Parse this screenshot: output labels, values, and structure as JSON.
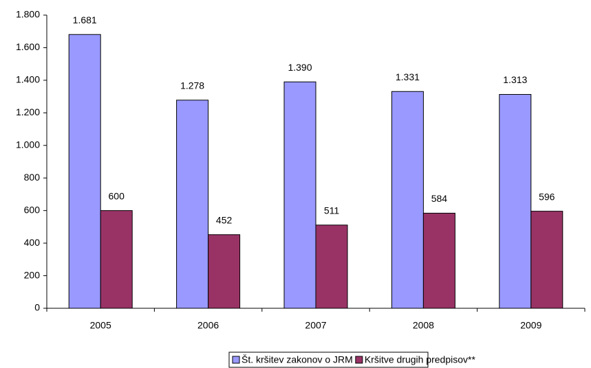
{
  "chart_data": {
    "type": "bar",
    "categories": [
      "2005",
      "2006",
      "2007",
      "2008",
      "2009"
    ],
    "series": [
      {
        "name": "Št. kršitev zakonov o JRM",
        "color": "#9999ff",
        "values": [
          1681,
          1278,
          1390,
          1331,
          1313
        ],
        "value_labels": [
          "1.681",
          "1.278",
          "1.390",
          "1.331",
          "1.313"
        ]
      },
      {
        "name": "Kršitve drugih predpisov**",
        "color": "#993366",
        "values": [
          600,
          452,
          511,
          584,
          596
        ]
      }
    ],
    "ylim": [
      0,
      1800
    ],
    "yticks": [
      0,
      200,
      400,
      600,
      800,
      {
        "value": 1000,
        "label": "1.000"
      },
      {
        "value": 1200,
        "label": "1.200"
      },
      {
        "value": 1400,
        "label": "1.400"
      },
      {
        "value": 1600,
        "label": "1.600"
      },
      {
        "value": 1800,
        "label": "1.800"
      }
    ],
    "grid": false,
    "legend": "bottom"
  }
}
